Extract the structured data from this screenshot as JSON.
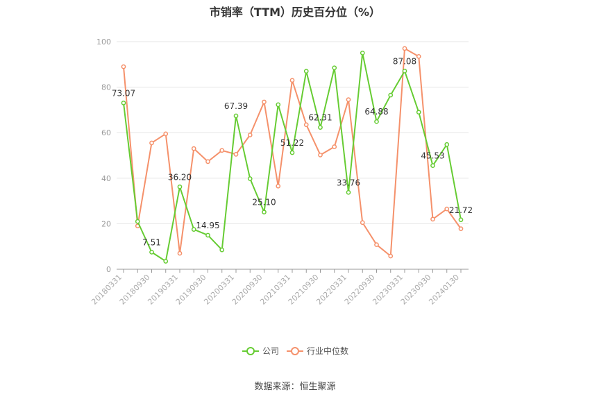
{
  "header": {
    "title": "市销率（TTM）历史百分位（%）"
  },
  "footer": {
    "source": "数据来源：恒生聚源"
  },
  "chart_data": {
    "type": "line",
    "title": "市销率（TTM）历史百分位（%）",
    "ylim": [
      0,
      100
    ],
    "y_ticks": [
      0,
      20,
      40,
      60,
      80,
      100
    ],
    "x_tick_labels": [
      "20180331",
      "20180930",
      "20190331",
      "20190930",
      "20200331",
      "20200930",
      "20210331",
      "20210930",
      "20220331",
      "20220930",
      "20230331",
      "20230930",
      "20240130"
    ],
    "x": [
      "20180331",
      "20180630",
      "20180930",
      "20181231",
      "20190331",
      "20190630",
      "20190930",
      "20191231",
      "20200331",
      "20200630",
      "20200930",
      "20201231",
      "20210331",
      "20210630",
      "20210930",
      "20211231",
      "20220331",
      "20220630",
      "20220930",
      "20221231",
      "20230331",
      "20230630",
      "20230930",
      "20231231",
      "20240130"
    ],
    "grid": true,
    "legend_position": "bottom",
    "colors": {
      "company": "#66cc33",
      "industry": "#f5916b",
      "grid": "#e6e6e6",
      "axis": "#999999"
    },
    "series": [
      {
        "name": "公司",
        "values": [
          73.07,
          21,
          7.51,
          3.5,
          36.2,
          17.5,
          14.95,
          8.5,
          67.39,
          39.8,
          25.1,
          72.3,
          51.22,
          87,
          62.31,
          88.5,
          33.76,
          95,
          64.88,
          76.5,
          87.08,
          69,
          45.53,
          54.8,
          21.72
        ],
        "labels": [
          "73.07",
          "",
          "7.51",
          "",
          "36.20",
          "",
          "14.95",
          "",
          "67.39",
          "",
          "25.10",
          "",
          "51.22",
          "",
          "62.31",
          "",
          "33.76",
          "",
          "64.88",
          "",
          "87.08",
          "",
          "45.53",
          "",
          "21.72"
        ]
      },
      {
        "name": "行业中位数",
        "values": [
          89,
          19,
          55.5,
          59.5,
          7,
          53,
          47.3,
          52.2,
          50.5,
          59,
          73.5,
          36.5,
          83,
          63.5,
          50.2,
          53.8,
          74.5,
          20.5,
          10.8,
          5.8,
          97,
          93.5,
          22,
          26.5,
          17.8
        ]
      }
    ]
  }
}
